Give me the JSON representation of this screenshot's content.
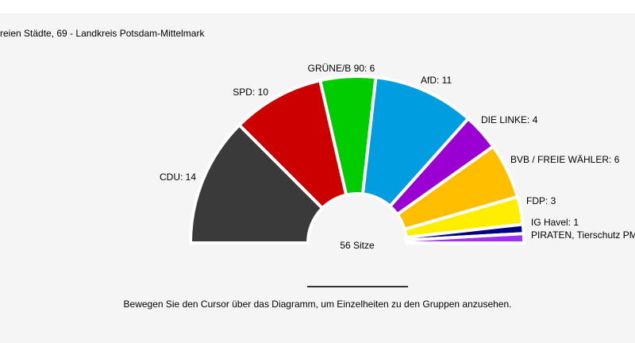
{
  "header": {
    "breadcrumb": "reien Städte, 69 - Landkreis Potsdam-Mittelmark"
  },
  "chart_data": {
    "type": "parliament-semicircle",
    "total_label": "56 Sitze",
    "total": 56,
    "series": [
      {
        "name": "CDU",
        "label": "CDU: 14",
        "value": 14,
        "color": "#3a3a3a"
      },
      {
        "name": "SPD",
        "label": "SPD: 10",
        "value": 10,
        "color": "#cc0000"
      },
      {
        "name": "GRÜNE/B 90",
        "label": "GRÜNE/B 90: 6",
        "value": 6,
        "color": "#00cc00"
      },
      {
        "name": "AfD",
        "label": "AfD: 11",
        "value": 11,
        "color": "#009ee0"
      },
      {
        "name": "DIE LINKE",
        "label": "DIE LINKE: 4",
        "value": 4,
        "color": "#9b00d3"
      },
      {
        "name": "BVB / FREIE WÄHLER",
        "label": "BVB / FREIE WÄHLER: 6",
        "value": 6,
        "color": "#ffbf00"
      },
      {
        "name": "FDP",
        "label": "FDP: 3",
        "value": 3,
        "color": "#ffee00"
      },
      {
        "name": "IG Havel",
        "label": "IG Havel: 1",
        "value": 1,
        "color": "#000080"
      },
      {
        "name": "PIRATEN, Tierschutz PM",
        "label": "PIRATEN, Tierschutz PM",
        "value": 1,
        "color": "#9f2df5"
      }
    ]
  },
  "footer": {
    "hint": "Bewegen Sie den Cursor über das Diagramm, um Einzelheiten zu den Gruppen anzusehen."
  }
}
